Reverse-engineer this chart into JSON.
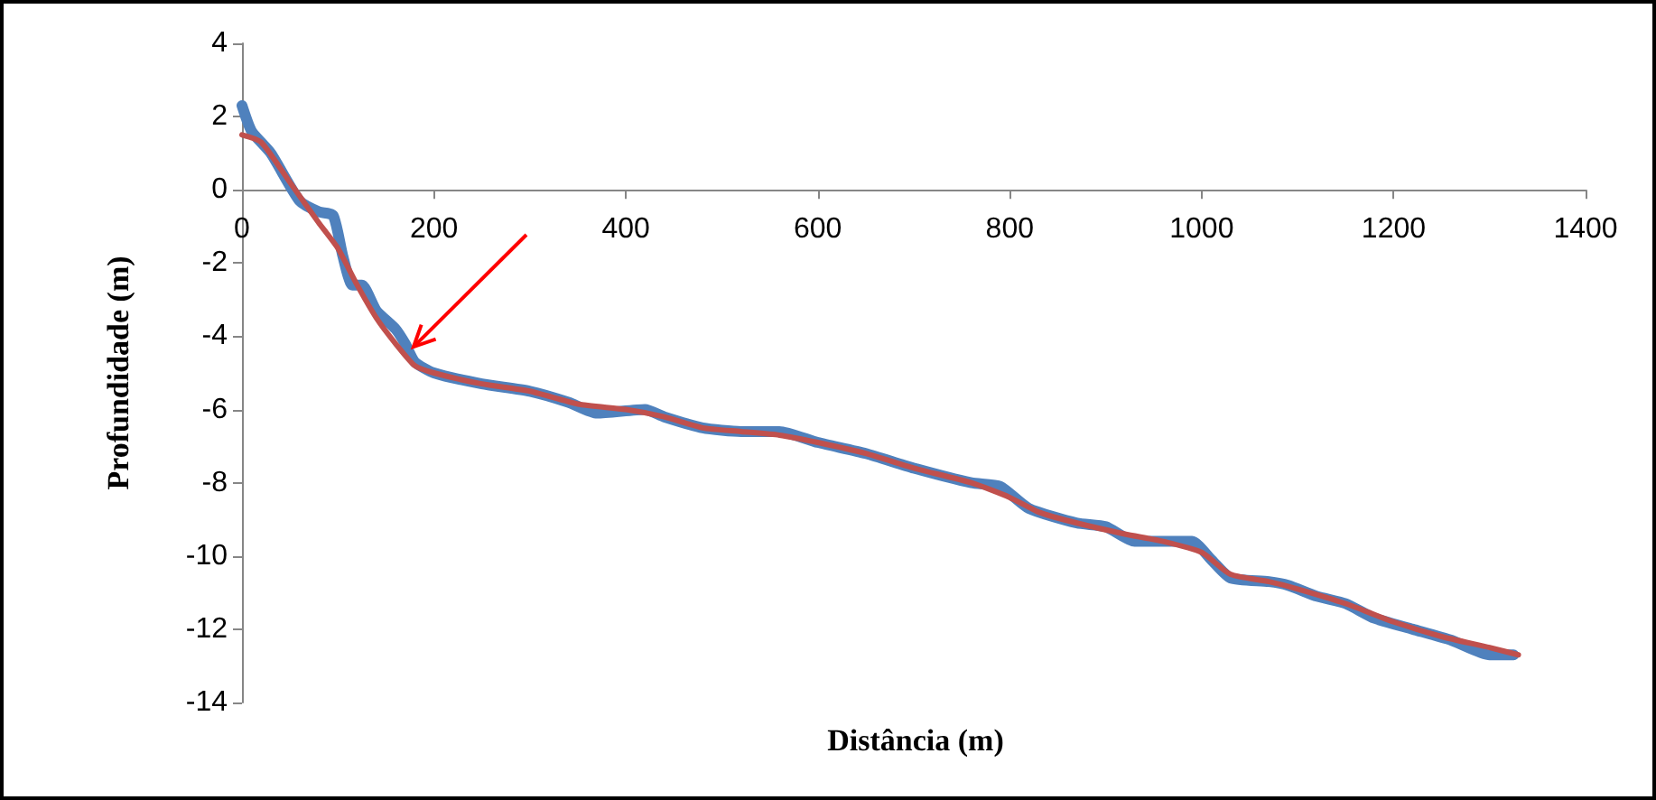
{
  "chart_data": {
    "type": "line",
    "xlabel": "Distância (m)",
    "ylabel": "Profundidade (m)",
    "xlim": [
      0,
      1400
    ],
    "xticks": [
      0,
      200,
      400,
      600,
      800,
      1000,
      1200,
      1400
    ],
    "ylim": [
      -14,
      4
    ],
    "yticks": [
      -14,
      -12,
      -10,
      -8,
      -6,
      -4,
      -2,
      0,
      2,
      4
    ],
    "marker": "none",
    "line_style": "solid",
    "series": [
      {
        "color": "#4f81bd",
        "x": [
          0,
          10,
          30,
          60,
          80,
          95,
          105,
          115,
          125,
          140,
          160,
          170,
          180,
          200,
          250,
          300,
          340,
          370,
          420,
          440,
          480,
          520,
          560,
          600,
          650,
          700,
          760,
          790,
          820,
          870,
          900,
          930,
          960,
          990,
          1010,
          1030,
          1070,
          1090,
          1120,
          1150,
          1180,
          1220,
          1260,
          1300,
          1325
        ],
        "values": [
          2.3,
          1.6,
          1.0,
          -0.3,
          -0.6,
          -0.7,
          -1.8,
          -2.6,
          -2.6,
          -3.3,
          -3.8,
          -4.2,
          -4.7,
          -5.0,
          -5.3,
          -5.5,
          -5.8,
          -6.1,
          -6.0,
          -6.2,
          -6.5,
          -6.6,
          -6.6,
          -6.9,
          -7.2,
          -7.6,
          -8.0,
          -8.1,
          -8.7,
          -9.1,
          -9.2,
          -9.6,
          -9.6,
          -9.6,
          -10.1,
          -10.6,
          -10.7,
          -10.8,
          -11.1,
          -11.3,
          -11.7,
          -12.0,
          -12.3,
          -12.7,
          -12.7
        ]
      },
      {
        "color": "#c0504d",
        "x": [
          0,
          20,
          50,
          80,
          100,
          120,
          140,
          160,
          180,
          200,
          250,
          300,
          350,
          400,
          440,
          480,
          520,
          560,
          600,
          650,
          700,
          760,
          800,
          830,
          870,
          920,
          960,
          1000,
          1030,
          1070,
          1100,
          1150,
          1200,
          1250,
          1300,
          1330
        ],
        "values": [
          1.5,
          1.3,
          0.2,
          -0.9,
          -1.6,
          -2.6,
          -3.5,
          -4.2,
          -4.8,
          -5.0,
          -5.3,
          -5.5,
          -5.85,
          -6.0,
          -6.2,
          -6.5,
          -6.6,
          -6.7,
          -6.9,
          -7.2,
          -7.6,
          -8.0,
          -8.4,
          -8.8,
          -9.1,
          -9.4,
          -9.6,
          -9.9,
          -10.5,
          -10.7,
          -10.9,
          -11.3,
          -11.8,
          -12.2,
          -12.5,
          -12.7
        ]
      }
    ]
  }
}
